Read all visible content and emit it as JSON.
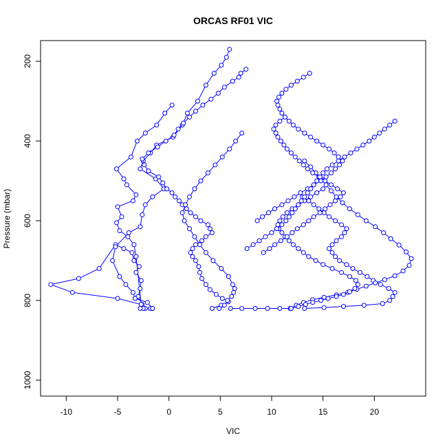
{
  "chart_data": {
    "type": "line",
    "title": "ORCAS RF01 VIC",
    "xlabel": "VIC",
    "ylabel": "Pressure (mbar)",
    "xlim": [
      -12.5,
      25
    ],
    "ylim": [
      1040,
      148
    ],
    "y_inverted": true,
    "x_ticks": [
      -10,
      -5,
      0,
      5,
      10,
      15,
      20
    ],
    "y_ticks": [
      200,
      400,
      600,
      800,
      1000
    ],
    "grid": false,
    "legend": "none",
    "marker": "open-circle",
    "line_style": "solid",
    "colors": {
      "series": "#0000ff",
      "axes": "#000000"
    },
    "series": [
      {
        "x": [
          -1.8,
          -1.6,
          -2.3,
          -2.5,
          -2.8,
          -2.6,
          -3.0,
          -2.8,
          -2.7,
          -3.2,
          -2.9,
          -3.4,
          -3.6,
          -4.4,
          -5.2,
          -6.8,
          -8.8,
          -11.5,
          -9.4,
          -5.0,
          -2.7,
          -3.2,
          -3.4,
          -4.0,
          -4.8,
          -5.1,
          -4.6,
          -5.0,
          -3.5,
          -3.2,
          -4.1,
          -4.4,
          -5.1,
          -3.7,
          -3.1,
          -2.3,
          -1.2,
          -0.4,
          0.3
        ],
        "y": [
          820,
          820,
          820,
          820,
          820,
          810,
          790,
          770,
          750,
          730,
          715,
          700,
          680,
          670,
          660,
          720,
          745,
          760,
          780,
          795,
          810,
          690,
          660,
          640,
          625,
          605,
          590,
          565,
          550,
          535,
          510,
          495,
          470,
          440,
          400,
          380,
          360,
          330,
          310
        ]
      },
      {
        "x": [
          -1.6,
          -2.1,
          -3.3,
          -3.5,
          -4.2,
          -4.8,
          -5.5,
          -5.2,
          -3.9,
          -2.8,
          -2.6,
          -2.3,
          -1.6,
          -0.5,
          -1.3,
          -2.8,
          -2.5,
          -1.8,
          -1.2,
          0.4,
          1.3,
          1.8,
          2.8,
          3.6,
          4.4,
          5.1,
          5.6,
          5.9
        ],
        "y": [
          820,
          805,
          795,
          780,
          760,
          740,
          700,
          665,
          630,
          615,
          585,
          560,
          540,
          520,
          495,
          470,
          450,
          430,
          410,
          390,
          360,
          330,
          300,
          260,
          230,
          210,
          190,
          170
        ]
      },
      {
        "x": [
          4.2,
          5.1,
          5.8,
          5.2,
          4.6,
          4.0,
          3.6,
          3.2,
          3.0,
          2.9,
          2.6,
          2.3,
          2.1,
          2.3,
          2.6,
          3.2,
          3.6,
          4.2,
          4.0,
          3.8,
          3.1,
          2.6,
          2.1,
          1.7,
          1.3,
          1.0,
          0.6,
          0.3,
          -0.2,
          -0.6,
          -1.0,
          -2.0,
          -2.4,
          -2.6,
          -2.0,
          -1.1,
          -0.3,
          0.5,
          0.9,
          1.4,
          2.0,
          2.6,
          3.3,
          4.1,
          4.8,
          5.4,
          6.2,
          6.8,
          7.0,
          7.5
        ],
        "y": [
          820,
          812,
          803,
          795,
          785,
          773,
          760,
          745,
          730,
          715,
          700,
          690,
          680,
          670,
          660,
          650,
          640,
          630,
          620,
          610,
          600,
          590,
          580,
          570,
          560,
          550,
          540,
          530,
          520,
          505,
          490,
          475,
          460,
          445,
          430,
          415,
          400,
          385,
          370,
          355,
          340,
          325,
          310,
          295,
          280,
          265,
          250,
          240,
          230,
          220
        ]
      },
      {
        "x": [
          4.9,
          5.4,
          5.7,
          6.1,
          6.3,
          6.4,
          6.2,
          5.8,
          5.1,
          4.3,
          3.6,
          3.0,
          2.5,
          2.0,
          1.5,
          1.3,
          1.6,
          2.0,
          2.5,
          3.1,
          3.8,
          4.5,
          5.2,
          5.9,
          6.5,
          7.1
        ],
        "y": [
          820,
          812,
          800,
          790,
          780,
          770,
          760,
          740,
          720,
          700,
          680,
          660,
          640,
          620,
          600,
          580,
          560,
          540,
          520,
          500,
          480,
          460,
          440,
          420,
          400,
          380
        ]
      },
      {
        "x": [
          13.2,
          15.1,
          17.0,
          19.0,
          20.8,
          21.5,
          21.8,
          22.0,
          21.4,
          20.6,
          19.9,
          19.3,
          18.6,
          17.9,
          17.3,
          16.6,
          16.2,
          15.9,
          15.6,
          15.9,
          16.3,
          16.8,
          17.1,
          17.3,
          16.8,
          16.2,
          15.6,
          15.1,
          14.6,
          14.1,
          13.6,
          13.0
        ],
        "y": [
          820,
          818,
          815,
          812,
          808,
          800,
          790,
          780,
          770,
          760,
          750,
          740,
          730,
          720,
          710,
          700,
          690,
          680,
          670,
          660,
          650,
          640,
          630,
          620,
          610,
          600,
          590,
          580,
          570,
          560,
          550,
          540
        ]
      },
      {
        "x": [
          11.8,
          12.4,
          13.1,
          14.0,
          15.1,
          16.3,
          17.4,
          18.3,
          19.2,
          20.1,
          21.0,
          22.0,
          22.8,
          23.4,
          23.6,
          23.1,
          22.4,
          21.6,
          20.9,
          20.1,
          19.2,
          18.4,
          17.6,
          16.9,
          16.3,
          15.8,
          15.3,
          14.8,
          14.3,
          13.8,
          13.2
        ],
        "y": [
          820,
          812,
          805,
          798,
          792,
          786,
          780,
          772,
          764,
          756,
          748,
          738,
          726,
          712,
          695,
          678,
          661,
          645,
          630,
          615,
          600,
          585,
          570,
          555,
          540,
          525,
          510,
          495,
          480,
          465,
          450
        ]
      },
      {
        "x": [
          6.0,
          7.1,
          8.4,
          9.6,
          10.8,
          11.9,
          12.6,
          13.3,
          14.0,
          14.8,
          15.5,
          16.3,
          17.0,
          17.6,
          18.1,
          18.4,
          18.2,
          17.6,
          16.8,
          15.9,
          15.0,
          14.3,
          13.6,
          13.1,
          12.6,
          12.1,
          11.7,
          11.3,
          11.0,
          10.7,
          10.6,
          10.8,
          11.1,
          11.5,
          12.0,
          12.6,
          13.2,
          13.8,
          14.4,
          15.0
        ],
        "y": [
          820,
          820,
          820,
          820,
          820,
          820,
          815,
          810,
          805,
          800,
          795,
          790,
          785,
          778,
          770,
          760,
          750,
          740,
          730,
          720,
          710,
          700,
          690,
          680,
          670,
          660,
          650,
          640,
          630,
          620,
          610,
          600,
          590,
          580,
          570,
          560,
          550,
          540,
          530,
          520
        ]
      },
      {
        "x": [
          8.6,
          9.1,
          9.7,
          10.3,
          11.0,
          11.6,
          12.2,
          12.8,
          13.5,
          14.1,
          14.8,
          15.3,
          15.8,
          16.2,
          16.6,
          16.9,
          16.5,
          16.1,
          15.6,
          15.0,
          14.4,
          13.8,
          13.2,
          12.6,
          12.1,
          11.7,
          11.3,
          11.0,
          10.8,
          10.6,
          10.5,
          10.7,
          11.0,
          11.4,
          11.9,
          12.5,
          13.1,
          13.7
        ],
        "y": [
          600,
          590,
          580,
          570,
          560,
          550,
          540,
          530,
          520,
          510,
          500,
          490,
          480,
          470,
          460,
          450,
          440,
          430,
          420,
          410,
          400,
          390,
          380,
          370,
          360,
          350,
          340,
          330,
          320,
          310,
          300,
          290,
          280,
          270,
          260,
          250,
          240,
          230
        ]
      },
      {
        "x": [
          9.2,
          9.8,
          10.3,
          10.9,
          11.5,
          12.0,
          12.5,
          13.1,
          13.6,
          14.1,
          14.7,
          15.2,
          15.7,
          16.2,
          16.7,
          17.0,
          16.4,
          15.8,
          15.2,
          14.6,
          14.0,
          13.5,
          13.1,
          12.7,
          12.3,
          11.9,
          11.5,
          11.2,
          10.9,
          10.6,
          10.4,
          10.2,
          10.4,
          10.8,
          11.3
        ],
        "y": [
          680,
          670,
          660,
          650,
          640,
          630,
          620,
          610,
          600,
          590,
          580,
          570,
          560,
          550,
          540,
          530,
          520,
          510,
          500,
          490,
          480,
          470,
          460,
          450,
          440,
          430,
          420,
          410,
          400,
          390,
          380,
          370,
          360,
          350,
          340
        ]
      },
      {
        "x": [
          7.6,
          8.2,
          8.8,
          9.4,
          10.0,
          10.5,
          11.0,
          11.4,
          11.7,
          12.0,
          12.3,
          12.6,
          12.9,
          13.2,
          13.5,
          13.8,
          14.1,
          14.4,
          14.7,
          15.0,
          15.4,
          15.9,
          16.5,
          17.1,
          17.7,
          18.3,
          18.9,
          19.5,
          20.0,
          20.5,
          21.0,
          21.5,
          22.0
        ],
        "y": [
          670,
          660,
          650,
          640,
          630,
          620,
          610,
          600,
          590,
          580,
          570,
          560,
          550,
          540,
          530,
          520,
          510,
          500,
          490,
          480,
          470,
          460,
          450,
          440,
          430,
          420,
          410,
          400,
          390,
          380,
          370,
          360,
          350
        ]
      }
    ]
  }
}
